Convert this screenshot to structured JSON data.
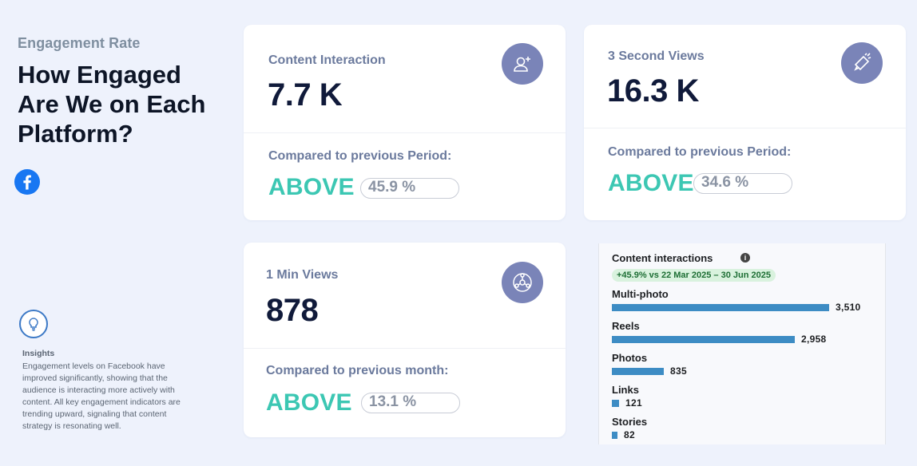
{
  "header": {
    "eyebrow": "Engagement Rate",
    "headline": "How Engaged Are We on Each Platform?"
  },
  "insights": {
    "title": "Insights",
    "text": "Engagement levels on Facebook have improved significantly, showing that the audience is interacting more actively with content. All key engagement indicators are trending upward, signaling that content strategy is resonating well."
  },
  "cards": {
    "content_interaction": {
      "label": "Content Interaction",
      "value": "7.7 K",
      "compare_label": "Compared to previous Period:",
      "status": "ABOVE",
      "change": "45.9 %",
      "icon": "user-add-icon"
    },
    "three_second_views": {
      "label": "3 Second Views",
      "value": "16.3 K",
      "compare_label": "Compared to previous Period:",
      "status": "ABOVE",
      "change": "34.6 %",
      "icon": "megaphone-icon"
    },
    "one_min_views": {
      "label": "1 Min Views",
      "value": "878",
      "compare_label": "Compared to previous month:",
      "status": "ABOVE",
      "change": "13.1 %",
      "icon": "network-icon"
    }
  },
  "panel": {
    "title": "Content interactions",
    "delta": "+45.9% vs 22 Mar 2025 – 30 Jun 2025"
  },
  "chart_data": {
    "type": "bar",
    "orientation": "horizontal",
    "title": "Content interactions",
    "categories": [
      "Multi-photo",
      "Reels",
      "Photos",
      "Links",
      "Stories"
    ],
    "values": [
      3510,
      2958,
      835,
      121,
      82
    ],
    "value_labels": [
      "3,510",
      "2,958",
      "835",
      "121",
      "82"
    ],
    "bar_color": "#3d8cc4"
  },
  "colors": {
    "background": "#eef2fc",
    "accent_status": "#3cc7b3",
    "badge": "#7a84b8",
    "facebook": "#1877f2"
  }
}
